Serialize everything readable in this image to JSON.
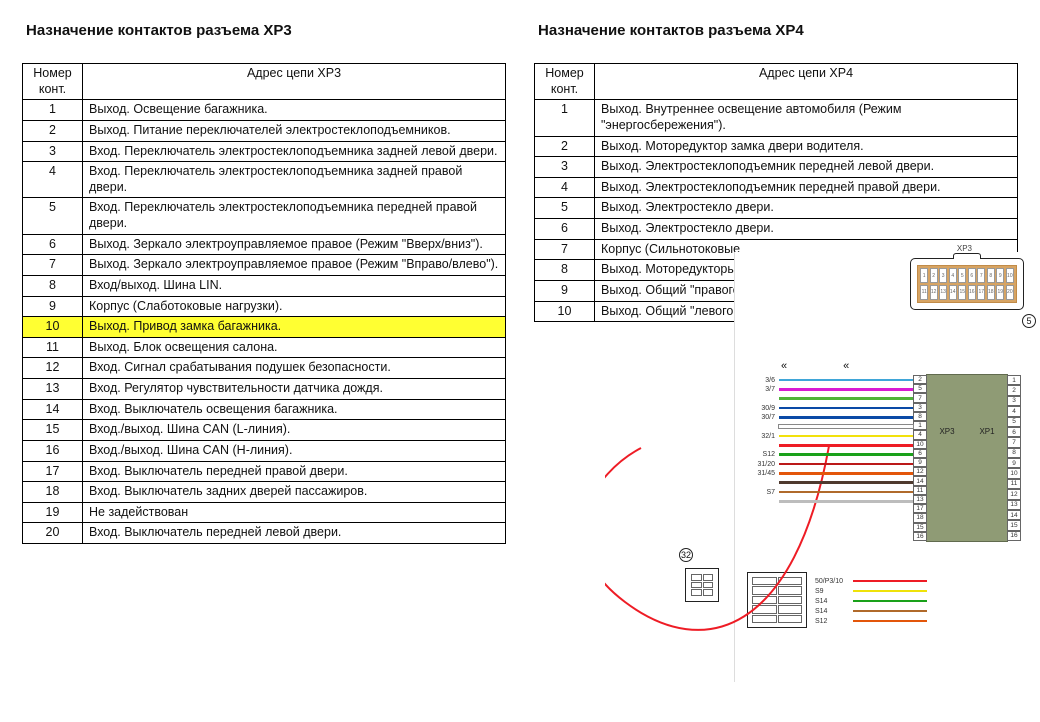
{
  "left": {
    "title": "Назначение контактов разъема XP3",
    "col_num": "Номер конт.",
    "col_addr": "Адрес цепи XP3",
    "rows": [
      {
        "n": "1",
        "t": "Выход. Освещение багажника."
      },
      {
        "n": "2",
        "t": "Выход. Питание переключателей электростеклоподъемников."
      },
      {
        "n": "3",
        "t": "Вход. Переключатель электростеклоподъемника задней левой двери."
      },
      {
        "n": "4",
        "t": "Вход. Переключатель электростеклоподъемника задней правой двери."
      },
      {
        "n": "5",
        "t": "Вход. Переключатель электростеклоподъемника передней правой двери."
      },
      {
        "n": "6",
        "t": "Выход. Зеркало электроуправляемое правое (Режим \"Вверх/вниз\")."
      },
      {
        "n": "7",
        "t": "Выход. Зеркало электроуправляемое правое (Режим \"Вправо/влево\")."
      },
      {
        "n": "8",
        "t": "Вход/выход. Шина LIN."
      },
      {
        "n": "9",
        "t": "Корпус (Слаботоковые нагрузки)."
      },
      {
        "n": "10",
        "t": "Выход. Привод замка багажника.",
        "hl": true
      },
      {
        "n": "11",
        "t": "Выход. Блок освещения салона."
      },
      {
        "n": "12",
        "t": "Вход. Сигнал срабатывания подушек безопасности."
      },
      {
        "n": "13",
        "t": "Вход. Регулятор чувствительности датчика дождя."
      },
      {
        "n": "14",
        "t": "Вход. Выключатель освещения багажника."
      },
      {
        "n": "15",
        "t": "Вход./выход. Шина CAN (L-линия)."
      },
      {
        "n": "16",
        "t": "Вход./выход. Шина CAN (H-линия)."
      },
      {
        "n": "17",
        "t": "Вход. Выключатель передней правой двери."
      },
      {
        "n": "18",
        "t": "Вход. Выключатель задних дверей пассажиров."
      },
      {
        "n": "19",
        "t": "Не задействован"
      },
      {
        "n": "20",
        "t": "Вход. Выключатель передней левой двери."
      }
    ]
  },
  "right": {
    "title": "Назначение контактов разъема XP4",
    "col_num": "Номер конт.",
    "col_addr": "Адрес цепи XP4",
    "rows": [
      {
        "n": "1",
        "t": "Выход. Внутреннее освещение автомобиля (Режим \"энергосбережения\")."
      },
      {
        "n": "2",
        "t": "Выход. Моторедуктор замка двери водителя."
      },
      {
        "n": "3",
        "t": "Выход. Электростеклоподъемник передней левой двери."
      },
      {
        "n": "4",
        "t": "Выход. Электростеклоподъемник передней правой двери."
      },
      {
        "n": "5",
        "t": "Выход. Электростекло                                  двери."
      },
      {
        "n": "6",
        "t": "Выход. Электростекло                                  двери."
      },
      {
        "n": "7",
        "t": "Корпус (Сильнотоковые"
      },
      {
        "n": "8",
        "t": "Выход. Моторедукторы                                        в."
      },
      {
        "n": "9",
        "t": "Выход. Общий \"правого"
      },
      {
        "n": "10",
        "t": "Выход. Общий \"левого"
      }
    ]
  },
  "diagram": {
    "ecu_color": "#8f9b75",
    "xp3_label": "XP3",
    "xp1_label": "XP1",
    "xp3_text": "XP3",
    "balloon5": "5",
    "balloon32": "32",
    "left_port_numbers": [
      "2",
      "5",
      "7",
      "3",
      "8",
      "1",
      "4",
      "10",
      "6",
      "9",
      "12",
      "14",
      "11",
      "13",
      "17",
      "18",
      "15",
      "16"
    ],
    "right_port_numbers": [
      "1",
      "2",
      "3",
      "4",
      "5",
      "6",
      "7",
      "8",
      "9",
      "10",
      "11",
      "12",
      "13",
      "14",
      "15",
      "16"
    ],
    "wires": [
      {
        "lbl": "3/6",
        "color": "#3fa6d8"
      },
      {
        "lbl": "3/7",
        "color": "#d81bd4"
      },
      {
        "lbl": "",
        "color": "#4fb33a"
      },
      {
        "lbl": "30/9",
        "color": "#0a4aa6"
      },
      {
        "lbl": "30/7",
        "color": "#0a4aa6"
      },
      {
        "lbl": "",
        "color": "#fefefe",
        "border": true
      },
      {
        "lbl": "32/1",
        "color": "#f2e10c"
      },
      {
        "lbl": "",
        "color": "#ee1c25"
      },
      {
        "lbl": "S12",
        "color": "#1aa11a"
      },
      {
        "lbl": "31/20",
        "color": "#bb1919"
      },
      {
        "lbl": "31/45",
        "color": "#e3560a"
      },
      {
        "lbl": "",
        "color": "#4f3a2f"
      },
      {
        "lbl": "S7",
        "color": "#b06a2b"
      },
      {
        "lbl": "",
        "color": "#bdbdbd"
      }
    ],
    "bottom_wires": [
      {
        "lbl": "50/P3/10",
        "color": "#ee1c25"
      },
      {
        "lbl": "S9",
        "color": "#efe20a"
      },
      {
        "lbl": "S14",
        "color": "#1aa11a"
      },
      {
        "lbl": "S14",
        "color": "#b06a2b"
      },
      {
        "lbl": "S12",
        "color": "#e3560a"
      }
    ],
    "connector_top_pins": [
      "1",
      "2",
      "3",
      "4",
      "5",
      "6",
      "7",
      "8",
      "9",
      "10",
      "11",
      "12",
      "13",
      "14",
      "15",
      "16",
      "17",
      "18",
      "19",
      "20"
    ]
  }
}
